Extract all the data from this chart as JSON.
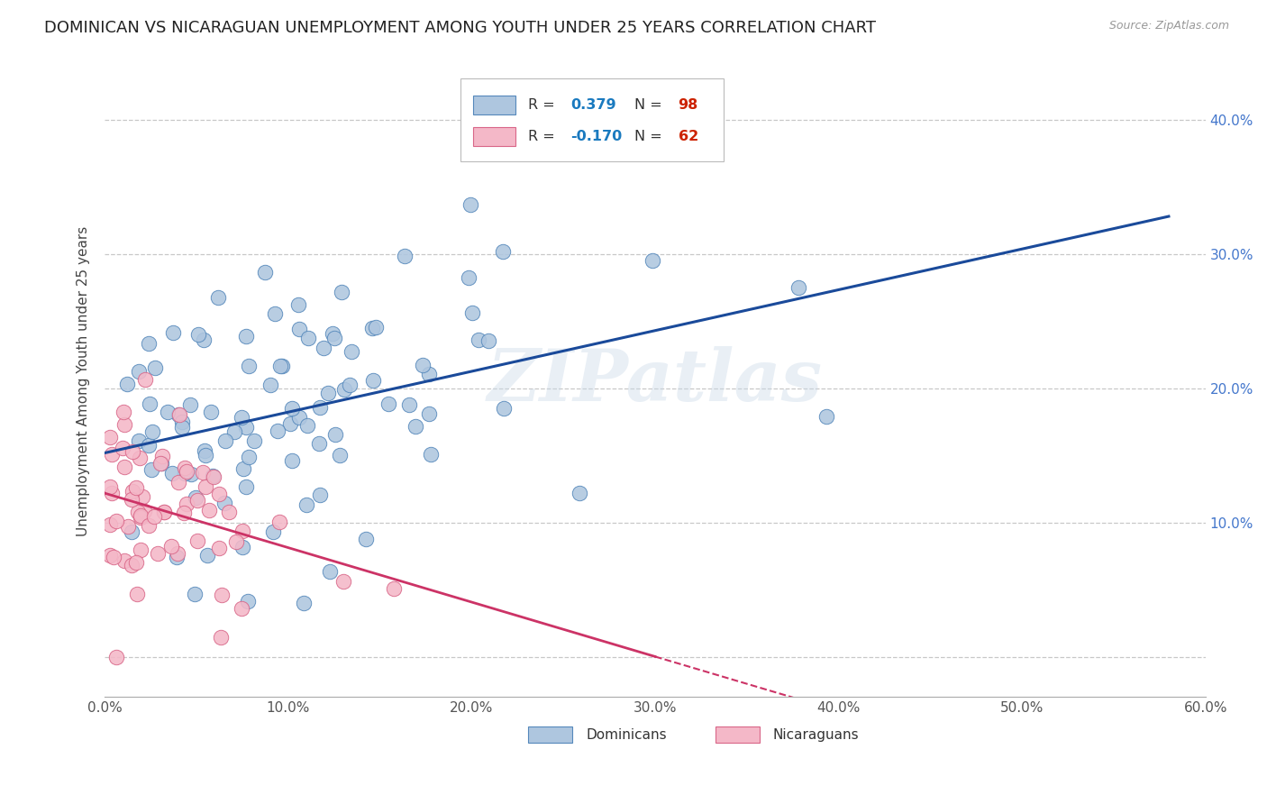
{
  "title": "DOMINICAN VS NICARAGUAN UNEMPLOYMENT AMONG YOUTH UNDER 25 YEARS CORRELATION CHART",
  "source": "Source: ZipAtlas.com",
  "ylabel": "Unemployment Among Youth under 25 years",
  "xlim": [
    0.0,
    0.6
  ],
  "ylim": [
    -0.03,
    0.44
  ],
  "xticks": [
    0.0,
    0.1,
    0.2,
    0.3,
    0.4,
    0.5,
    0.6
  ],
  "xticklabels": [
    "0.0%",
    "10.0%",
    "20.0%",
    "30.0%",
    "40.0%",
    "50.0%",
    "60.0%"
  ],
  "yticks": [
    0.0,
    0.1,
    0.2,
    0.3,
    0.4
  ],
  "right_yticklabels": [
    "",
    "10.0%",
    "20.0%",
    "30.0%",
    "40.0%"
  ],
  "dominican_color": "#aec6df",
  "dominican_edge_color": "#5588bb",
  "nicaraguan_color": "#f4b8c8",
  "nicaraguan_edge_color": "#d96688",
  "trendline_dom_color": "#1a4a9a",
  "trendline_nic_color": "#cc3366",
  "watermark": "ZIPatlas",
  "background_color": "#ffffff",
  "grid_color": "#c8c8c8",
  "title_fontsize": 13,
  "axis_label_fontsize": 11,
  "tick_fontsize": 11,
  "dom_R": 0.379,
  "dom_N": 98,
  "nic_R": -0.17,
  "nic_N": 62,
  "dom_seed": 42,
  "nic_seed": 7
}
